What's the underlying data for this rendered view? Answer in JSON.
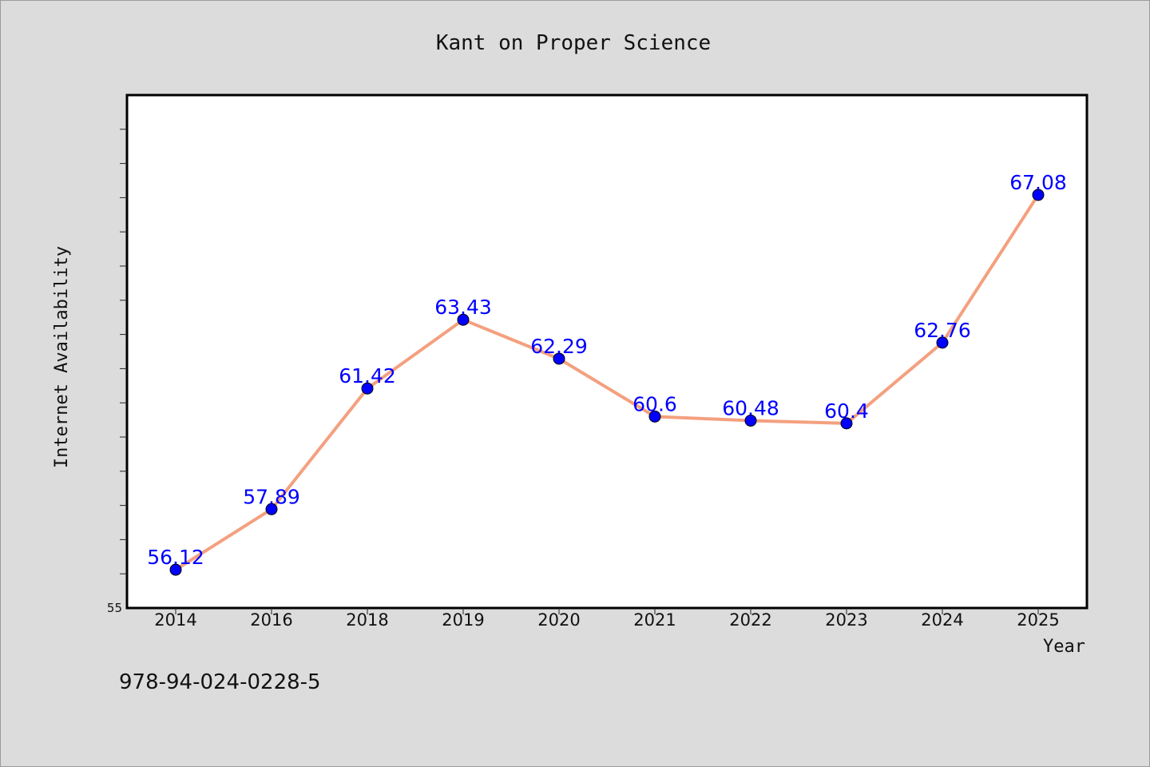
{
  "chart_data": {
    "type": "line",
    "title": "Kant on Proper Science",
    "xlabel": "Year",
    "ylabel": "Internet Availability",
    "categories": [
      "2014",
      "2016",
      "2018",
      "2019",
      "2020",
      "2021",
      "2022",
      "2023",
      "2024",
      "2025"
    ],
    "series": [
      {
        "values": [
          56.12,
          57.89,
          61.42,
          63.43,
          62.29,
          60.6,
          60.48,
          60.4,
          62.76,
          67.08
        ],
        "data_labels": [
          "56.12",
          "57.89",
          "61.42",
          "63.43",
          "62.29",
          "60.6",
          "60.48",
          "60.4",
          "62.76",
          "67.08"
        ],
        "line_color": "#f4a07f",
        "marker_color": "#0000ff"
      }
    ],
    "ylim": [
      55,
      70
    ],
    "y_tick_labels": [
      "55"
    ],
    "grid": false,
    "legend": "none"
  },
  "footer": {
    "isbn": "978-94-024-0228-5"
  },
  "colors": {
    "background": "#dcdcdc",
    "plot_background": "#ffffff",
    "data_label": "#0000ff"
  }
}
